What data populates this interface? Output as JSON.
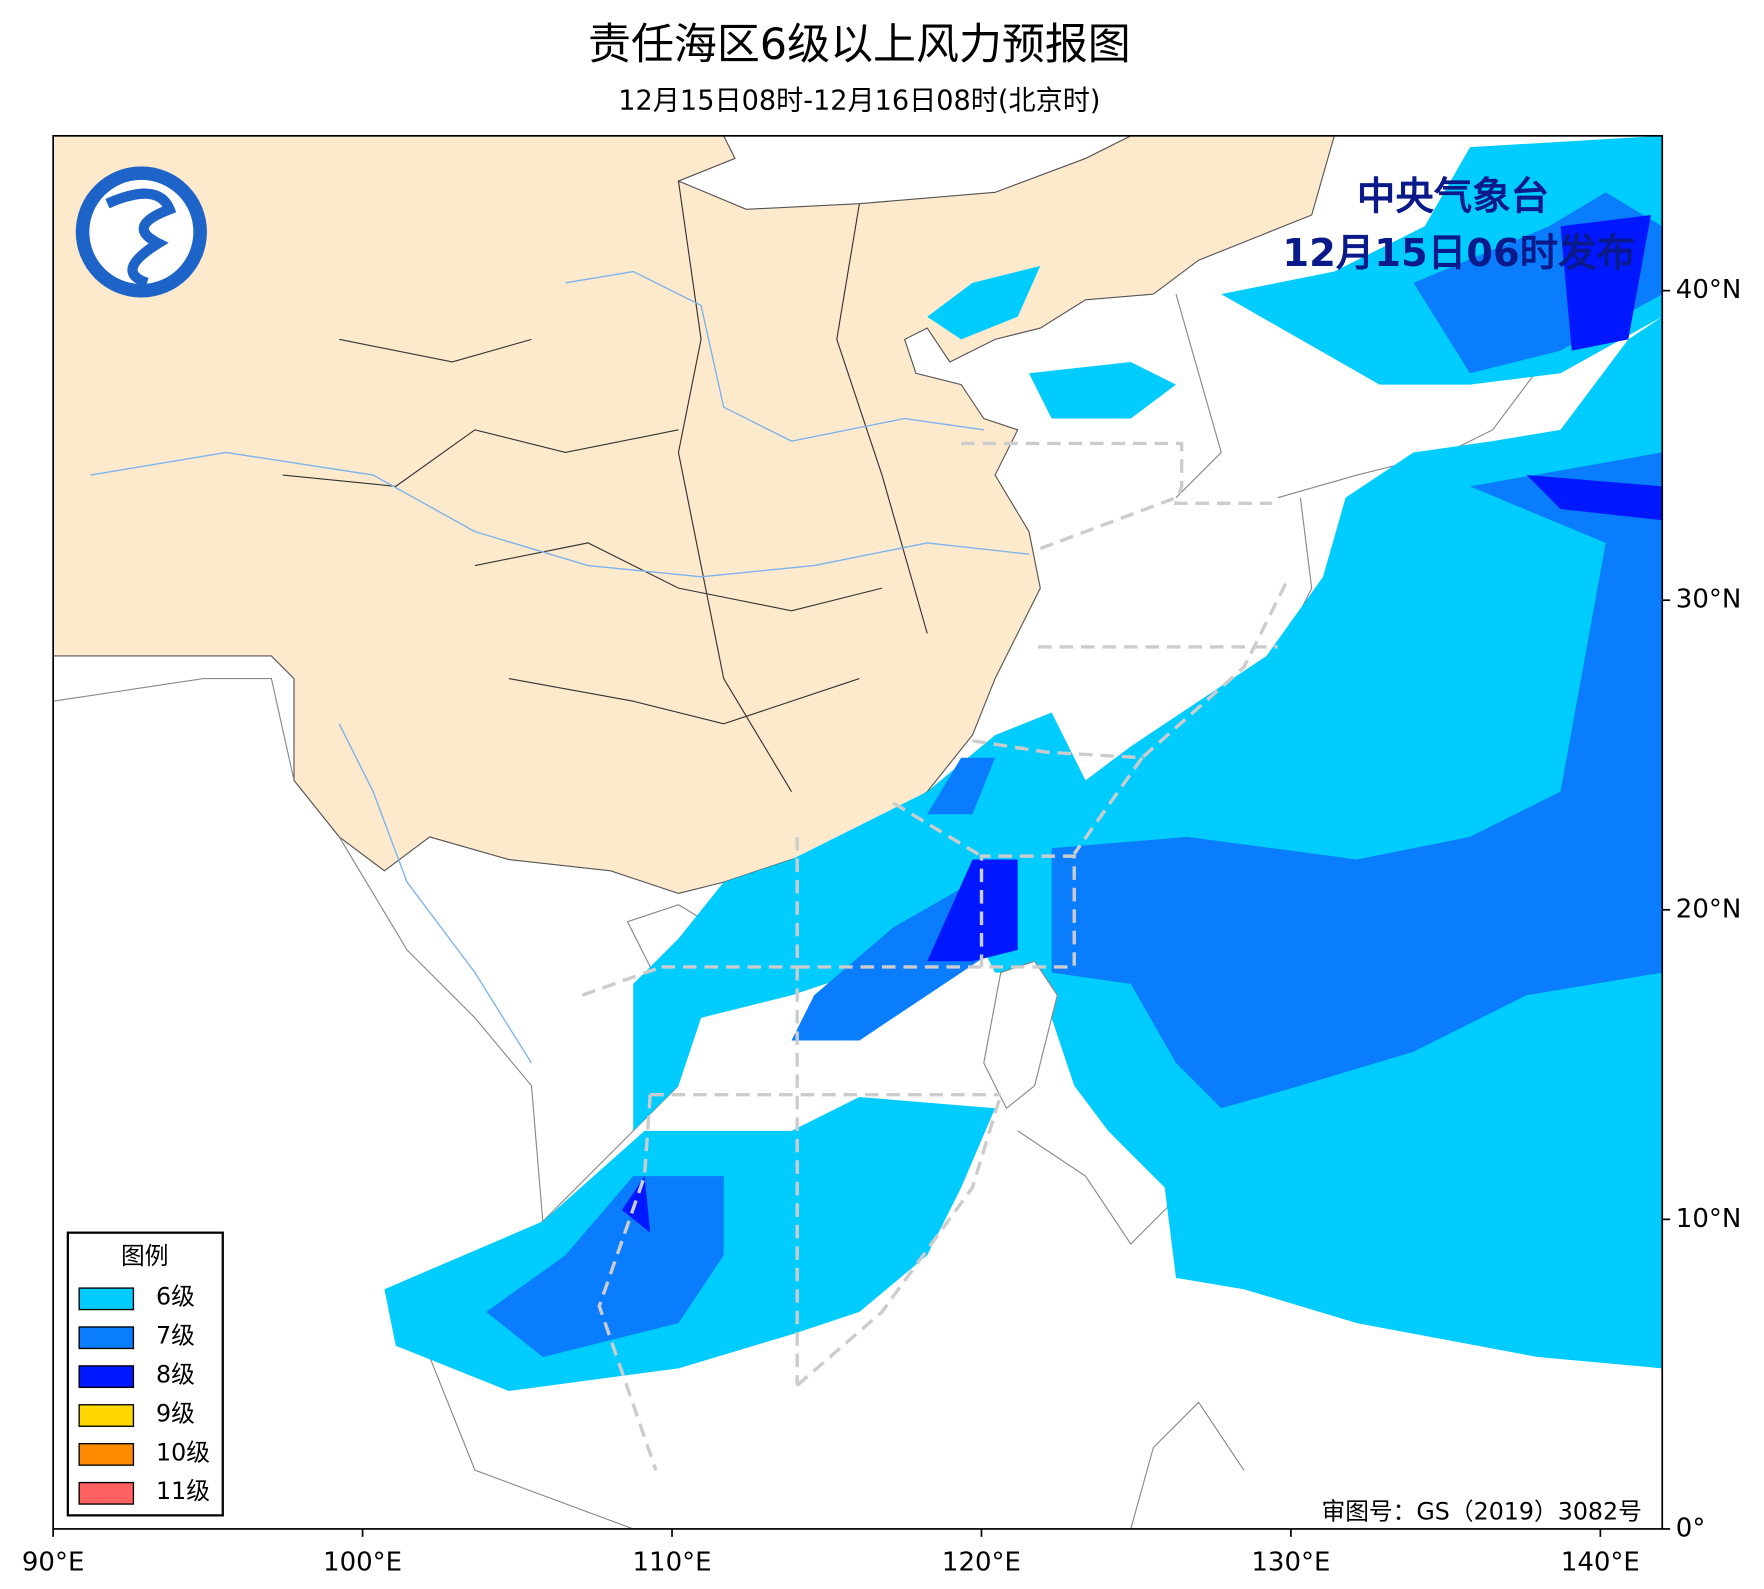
{
  "header": {
    "title": "责任海区6级以上风力预报图",
    "subtitle": "12月15日08时-12月16日08时(北京时)"
  },
  "issuer": {
    "name": "中央气象台",
    "time": "12月15日06时发布"
  },
  "map": {
    "xlim": [
      90,
      142
    ],
    "ylim": [
      0,
      45
    ],
    "xticks": [
      {
        "value": 90,
        "label": "90°E"
      },
      {
        "value": 100,
        "label": "100°E"
      },
      {
        "value": 110,
        "label": "110°E"
      },
      {
        "value": 120,
        "label": "120°E"
      },
      {
        "value": 130,
        "label": "130°E"
      },
      {
        "value": 140,
        "label": "140°E"
      }
    ],
    "yticks": [
      {
        "value": 0,
        "label": "0°"
      },
      {
        "value": 10,
        "label": "10°N"
      },
      {
        "value": 20,
        "label": "20°N"
      },
      {
        "value": 30,
        "label": "30°N"
      },
      {
        "value": 40,
        "label": "40°N"
      }
    ]
  },
  "legend": {
    "title": "图例",
    "items": [
      {
        "label": "6级",
        "color": "#00ccff"
      },
      {
        "label": "7级",
        "color": "#0a7dff"
      },
      {
        "label": "8级",
        "color": "#0018ff"
      },
      {
        "label": "9级",
        "color": "#ffd700"
      },
      {
        "label": "10级",
        "color": "#ff8c00"
      },
      {
        "label": "11级",
        "color": "#ff6060"
      }
    ]
  },
  "approval": "审图号：GS（2019）3082号"
}
